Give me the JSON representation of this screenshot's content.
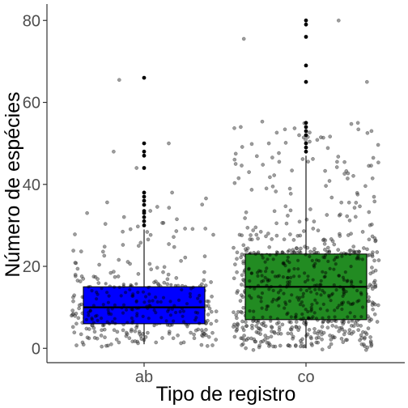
{
  "chart_data": {
    "type": "boxplot",
    "xlabel": "Tipo de registro",
    "ylabel": "Número de espécies",
    "ylim": [
      -3.5,
      84
    ],
    "yticks": [
      0,
      20,
      40,
      60,
      80
    ],
    "grid": false,
    "legend": "none",
    "categories": [
      "ab",
      "co"
    ],
    "boxes": [
      {
        "category": "ab",
        "fill": "#0000ff",
        "min": 1,
        "q1": 6,
        "median": 10,
        "q3": 15,
        "whisker_high": 29,
        "outliers": [
          30,
          31,
          32,
          33,
          33.5,
          35,
          36,
          37,
          38,
          44,
          47,
          48,
          50,
          66
        ],
        "jitter_max": 66
      },
      {
        "category": "co",
        "fill": "#228b22",
        "min": 0,
        "q1": 7,
        "median": 15,
        "q3": 23,
        "whisker_high": 47,
        "outliers": [
          48,
          49,
          50,
          52,
          53,
          54,
          55,
          65,
          69,
          76,
          79,
          80
        ],
        "jitter_max": 80
      }
    ],
    "colors": {
      "box_outline": "#000000",
      "jitter_points": "#4d4d4d",
      "outlier_points": "#000000"
    }
  }
}
